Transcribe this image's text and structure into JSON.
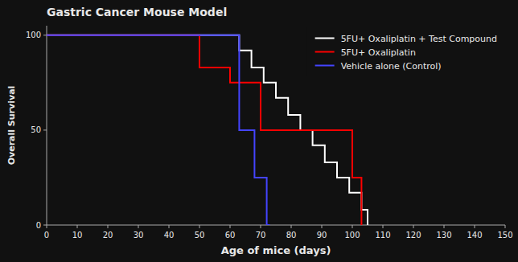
{
  "chart_data": {
    "type": "step",
    "title": "Gastric Cancer Mouse Model",
    "x_label": "Age of mice (days)",
    "y_label": "Overall Survival",
    "xlim": [
      0,
      150
    ],
    "ylim": [
      0,
      105
    ],
    "xticks": [
      0,
      10,
      20,
      30,
      40,
      50,
      60,
      70,
      80,
      90,
      100,
      110,
      120,
      130,
      140,
      150
    ],
    "yticks": [
      0,
      50,
      100
    ],
    "grid": false,
    "legend": "upper right",
    "series": [
      {
        "name": "5FU+ Oxaliplatin + Test Compound",
        "color": "#ffffff",
        "x": [
          0,
          63,
          63,
          67,
          67,
          71,
          71,
          75,
          75,
          79,
          79,
          83,
          83,
          87,
          87,
          91,
          91,
          95,
          95,
          99,
          99,
          103,
          103,
          105,
          105
        ],
        "values": [
          100,
          100,
          92,
          92,
          83,
          83,
          75,
          75,
          67,
          67,
          58,
          58,
          50,
          50,
          42,
          42,
          33,
          33,
          25,
          25,
          17,
          17,
          8,
          8,
          0
        ]
      },
      {
        "name": "5FU+ Oxaliplatin",
        "color": "#ff0000",
        "x": [
          0,
          50,
          50,
          60,
          60,
          70,
          70,
          80,
          80,
          90,
          90,
          100,
          100,
          103,
          103
        ],
        "values": [
          100,
          100,
          83,
          83,
          75,
          75,
          50,
          50,
          50,
          50,
          50,
          50,
          25,
          25,
          0
        ]
      },
      {
        "name": "Vehicle alone (Control)",
        "color": "#4444ff",
        "x": [
          0,
          63,
          63,
          68,
          68,
          72,
          72,
          73
        ],
        "values": [
          100,
          100,
          50,
          50,
          25,
          25,
          0,
          0
        ]
      }
    ]
  }
}
